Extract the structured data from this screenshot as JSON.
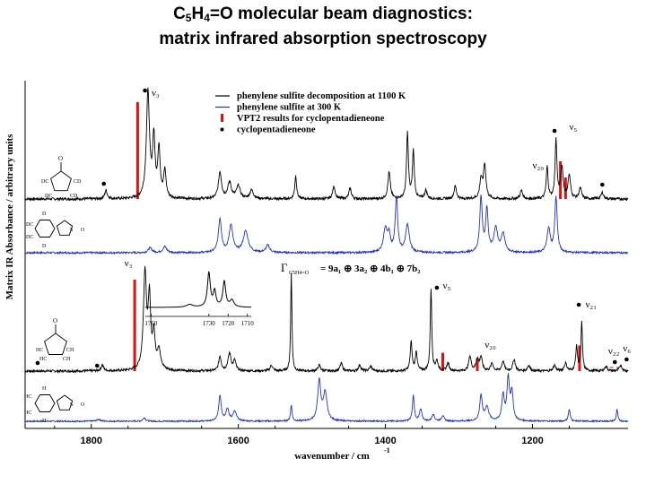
{
  "title": {
    "part1": "C",
    "sub1": "5",
    "part2": "H",
    "sub2": "4",
    "part3": "=O molecular beam diagnostics:",
    "line2": "matrix infrared absorption spectroscopy"
  },
  "colors": {
    "decomposition": "#000000",
    "precursor": "#2233cc",
    "vpt2": "#dd1111",
    "marker": "#000000"
  },
  "chart_data": {
    "type": "line",
    "xlabel": "wavenumber / cm",
    "xlabel_sup": "-1",
    "ylabel": "Matrix IR Absorbance / arbitrary units",
    "xlim": [
      1890,
      1070
    ],
    "x_reversed": true,
    "xticks": [
      1800,
      1600,
      1400,
      1200
    ],
    "legend": [
      {
        "label": "phenylene sulfite decomposition at 1100 K",
        "style": "line",
        "color": "#000000"
      },
      {
        "label": "phenylene sulfite at 300 K",
        "style": "line",
        "color": "#2233cc"
      },
      {
        "label": "VPT2 results for cyclopentadieneone",
        "style": "bar",
        "color": "#dd1111"
      },
      {
        "label": "cyclopentadieneone",
        "style": "dot",
        "color": "#000000"
      }
    ],
    "legend_position": "top-right",
    "symmetry_label": {
      "gamma": "Γ",
      "gamma_sub": "C5H4=O",
      "expr": "= 9a₁ ⊕ 3a₂ ⊕ 4b₁ ⊕ 7b₂"
    },
    "panels": [
      {
        "name": "deuterated",
        "decomposition_peaks": [
          [
            1723,
            1.0,
            2.5
          ],
          [
            1715,
            0.55,
            2.0
          ],
          [
            1708,
            0.45,
            2
          ],
          [
            1700,
            0.25,
            2
          ],
          [
            1780,
            0.08,
            2
          ],
          [
            1625,
            0.25,
            2.5
          ],
          [
            1612,
            0.15,
            3
          ],
          [
            1600,
            0.12,
            3
          ],
          [
            1582,
            0.08,
            3
          ],
          [
            1522,
            0.22,
            1.5
          ],
          [
            1470,
            0.12,
            2
          ],
          [
            1448,
            0.1,
            2
          ],
          [
            1395,
            0.25,
            2
          ],
          [
            1370,
            0.62,
            1.5
          ],
          [
            1362,
            0.45,
            1.5
          ],
          [
            1345,
            0.08,
            2
          ],
          [
            1305,
            0.12,
            2
          ],
          [
            1270,
            0.18,
            2
          ],
          [
            1265,
            0.32,
            2
          ],
          [
            1215,
            0.08,
            2
          ],
          [
            1180,
            0.3,
            1.5
          ],
          [
            1168,
            0.55,
            1.5
          ],
          [
            1160,
            0.3,
            2
          ],
          [
            1150,
            0.22,
            2
          ],
          [
            1135,
            0.1,
            2
          ],
          [
            1105,
            0.06,
            2
          ]
        ],
        "precursor_peaks": [
          [
            1720,
            0.08,
            3
          ],
          [
            1700,
            0.1,
            3
          ],
          [
            1625,
            0.55,
            2.5
          ],
          [
            1610,
            0.45,
            3
          ],
          [
            1590,
            0.35,
            4
          ],
          [
            1560,
            0.12,
            3
          ],
          [
            1400,
            0.4,
            3
          ],
          [
            1395,
            0.25,
            2
          ],
          [
            1385,
            0.9,
            2
          ],
          [
            1370,
            0.45,
            3
          ],
          [
            1270,
            0.9,
            2
          ],
          [
            1262,
            0.7,
            2
          ],
          [
            1250,
            0.4,
            3
          ],
          [
            1240,
            0.3,
            3
          ],
          [
            1178,
            0.4,
            2.5
          ],
          [
            1168,
            0.9,
            2
          ]
        ],
        "vpt2_lines": [
          [
            1737,
            0.9
          ],
          [
            1162,
            0.35
          ],
          [
            1155,
            0.2
          ]
        ],
        "markers": [
          1727,
          1783,
          1170,
          1105
        ],
        "mode_labels": [
          {
            "text": "ν₃",
            "x": 1725
          },
          {
            "text": "ν₅",
            "x": 1155
          },
          {
            "text": "ν₂₀",
            "x": 1190
          }
        ]
      },
      {
        "name": "normal",
        "decomposition_peaks": [
          [
            1727,
            1.0,
            2.5
          ],
          [
            1721,
            0.7,
            2
          ],
          [
            1715,
            0.35,
            2
          ],
          [
            1708,
            0.2,
            3
          ],
          [
            1785,
            0.06,
            2
          ],
          [
            1625,
            0.15,
            2
          ],
          [
            1612,
            0.18,
            2.5
          ],
          [
            1605,
            0.1,
            2
          ],
          [
            1555,
            0.06,
            2
          ],
          [
            1528,
            1.02,
            1
          ],
          [
            1490,
            0.06,
            2
          ],
          [
            1460,
            0.08,
            2
          ],
          [
            1435,
            0.06,
            2
          ],
          [
            1420,
            0.05,
            2
          ],
          [
            1365,
            0.3,
            1.5
          ],
          [
            1358,
            0.2,
            1.5
          ],
          [
            1338,
            0.85,
            1.2
          ],
          [
            1330,
            0.1,
            2
          ],
          [
            1315,
            0.08,
            2
          ],
          [
            1285,
            0.15,
            2
          ],
          [
            1275,
            0.12,
            2
          ],
          [
            1270,
            0.14,
            2
          ],
          [
            1255,
            0.08,
            2
          ],
          [
            1240,
            0.1,
            2
          ],
          [
            1225,
            0.12,
            2
          ],
          [
            1205,
            0.06,
            2
          ],
          [
            1170,
            0.06,
            2
          ],
          [
            1155,
            0.08,
            2
          ],
          [
            1140,
            0.25,
            1.5
          ],
          [
            1133,
            0.5,
            1.2
          ],
          [
            1100,
            0.05,
            2
          ],
          [
            1080,
            0.06,
            2
          ]
        ],
        "precursor_peaks": [
          [
            1790,
            0.04,
            3
          ],
          [
            1728,
            0.08,
            2
          ],
          [
            1625,
            0.55,
            2
          ],
          [
            1615,
            0.25,
            2.5
          ],
          [
            1605,
            0.2,
            3
          ],
          [
            1528,
            0.35,
            1.2
          ],
          [
            1490,
            0.85,
            2.5
          ],
          [
            1482,
            0.6,
            3
          ],
          [
            1362,
            0.55,
            1.5
          ],
          [
            1352,
            0.25,
            2
          ],
          [
            1335,
            0.15,
            2
          ],
          [
            1322,
            0.12,
            2
          ],
          [
            1270,
            0.55,
            2
          ],
          [
            1262,
            0.3,
            3
          ],
          [
            1240,
            0.55,
            2
          ],
          [
            1233,
            0.9,
            2
          ],
          [
            1228,
            0.6,
            2
          ],
          [
            1150,
            0.25,
            1.5
          ],
          [
            1085,
            0.25,
            1.2
          ]
        ],
        "vpt2_lines": [
          [
            1741,
            1.0
          ],
          [
            1322,
            0.2
          ],
          [
            1275,
            0.14
          ],
          [
            1136,
            0.28
          ]
        ],
        "markers": [
          1873,
          1792,
          1330,
          1137,
          1088,
          1072
        ],
        "mode_labels": [
          {
            "text": "ν₃",
            "x": 1725
          },
          {
            "text": "ν₅",
            "x": 1330
          },
          {
            "text": "ν₂₀",
            "x": 1268
          },
          {
            "text": "ν₂₁",
            "x": 1123
          },
          {
            "text": "ν₂₂",
            "x": 1090
          },
          {
            "text": "ν₆",
            "x": 1072
          }
        ]
      }
    ],
    "inset": {
      "xlim": [
        1763,
        1708
      ],
      "xticks": [
        1760,
        1730,
        1720,
        1710
      ],
      "peaks": [
        [
          1730,
          1.0,
          0.9
        ],
        [
          1727,
          0.45,
          0.8
        ],
        [
          1722,
          0.75,
          0.9
        ],
        [
          1718,
          0.2,
          1.2
        ],
        [
          1740,
          0.08,
          2
        ]
      ]
    },
    "structure_labels": {
      "deuterated_ketone": [
        "O",
        "DC",
        "CD",
        "DC",
        "CD"
      ],
      "deuterated_sulfite": [
        "D",
        "DC",
        "DC",
        "D",
        "O",
        "S",
        "O",
        "O"
      ],
      "normal_ketone": [
        "O",
        "C",
        "HC",
        "CH",
        "HC",
        "CH",
        "H",
        "H"
      ],
      "normal_sulfite": [
        "H",
        "HC",
        "HC",
        "H",
        "O",
        "S",
        "O",
        "O"
      ]
    }
  }
}
